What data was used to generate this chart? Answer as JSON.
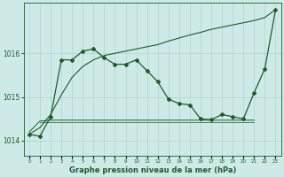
{
  "title": "Graphe pression niveau de la mer (hPa)",
  "background_color": "#ceeae7",
  "grid_color": "#afd4d0",
  "line_color": "#1a5c2a",
  "x_labels": [
    "0",
    "1",
    "2",
    "3",
    "4",
    "5",
    "6",
    "7",
    "8",
    "9",
    "10",
    "11",
    "12",
    "13",
    "14",
    "15",
    "16",
    "17",
    "18",
    "19",
    "20",
    "21",
    "22",
    "23"
  ],
  "ylim": [
    1013.65,
    1017.15
  ],
  "yticks": [
    1014,
    1015,
    1016
  ],
  "main_series": [
    1014.15,
    1014.1,
    1014.55,
    1015.85,
    1015.85,
    1016.05,
    1016.1,
    1015.9,
    1015.75,
    1015.75,
    1015.85,
    1015.6,
    1015.35,
    1014.95,
    1014.85,
    1014.82,
    1014.5,
    1014.48,
    1014.6,
    1014.55,
    1014.5,
    1015.1,
    1015.65,
    1017.0
  ],
  "trend_line": [
    1014.15,
    1014.3,
    1014.6,
    1015.05,
    1015.45,
    1015.7,
    1015.85,
    1015.95,
    1016.0,
    1016.05,
    1016.1,
    1016.15,
    1016.2,
    1016.28,
    1016.35,
    1016.42,
    1016.48,
    1016.55,
    1016.6,
    1016.65,
    1016.7,
    1016.75,
    1016.82,
    1017.0
  ],
  "flat_line1_x": [
    0,
    1,
    2,
    3,
    4,
    5,
    6,
    7,
    8,
    9,
    10,
    11,
    12,
    13,
    14,
    15,
    16,
    17,
    18,
    19,
    20,
    21
  ],
  "flat_line1_y": [
    1014.2,
    1014.45,
    1014.47,
    1014.47,
    1014.47,
    1014.47,
    1014.47,
    1014.47,
    1014.47,
    1014.47,
    1014.47,
    1014.47,
    1014.47,
    1014.47,
    1014.47,
    1014.47,
    1014.47,
    1014.47,
    1014.47,
    1014.47,
    1014.47,
    1014.47
  ],
  "flat_line2_x": [
    1,
    2,
    3,
    4,
    5,
    6,
    7,
    8,
    9,
    10,
    11,
    12,
    13,
    14,
    15,
    16,
    17,
    18,
    19,
    20,
    21
  ],
  "flat_line2_y": [
    1014.43,
    1014.43,
    1014.43,
    1014.43,
    1014.43,
    1014.43,
    1014.43,
    1014.43,
    1014.43,
    1014.43,
    1014.43,
    1014.43,
    1014.43,
    1014.43,
    1014.43,
    1014.43,
    1014.43,
    1014.43,
    1014.43,
    1014.43,
    1014.43
  ]
}
